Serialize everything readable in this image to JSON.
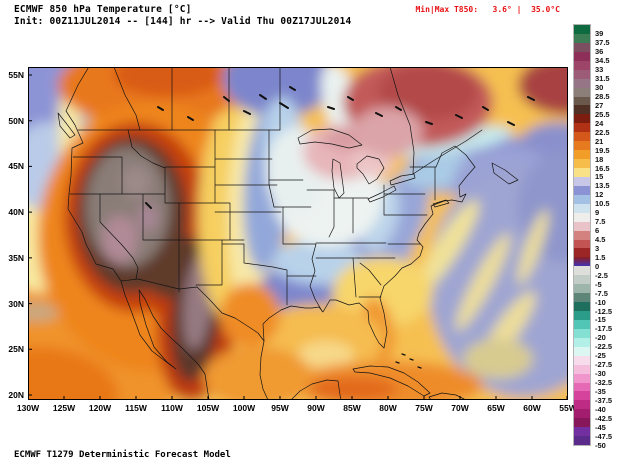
{
  "header": {
    "title": "ECMWF 850 hPa Temperature [°C]",
    "subtitle": "Init: 00Z11JUL2014 -- [144] hr --> Valid Thu 00Z17JUL2014",
    "minmax_label": "Min|Max T850:",
    "min_value": "3.6°",
    "separator": "|",
    "max_value": "35.0°C",
    "minmax_color": "#e81216"
  },
  "footer": {
    "text": "ECMWF T1279 Deterministic Forecast Model"
  },
  "axes": {
    "lat_labels": [
      "55N",
      "50N",
      "45N",
      "40N",
      "35N",
      "30N",
      "25N",
      "20N"
    ],
    "lon_labels": [
      "130W",
      "125W",
      "120W",
      "115W",
      "110W",
      "105W",
      "100W",
      "95W",
      "90W",
      "85W",
      "80W",
      "75W",
      "70W",
      "65W",
      "60W",
      "55W"
    ]
  },
  "colorbar": {
    "unit": "°C",
    "segments": [
      {
        "v": "39",
        "c": "#0e6b40"
      },
      {
        "v": "37.5",
        "c": "#3d7d55"
      },
      {
        "v": "36",
        "c": "#7b4f60"
      },
      {
        "v": "34.5",
        "c": "#8d2f58"
      },
      {
        "v": "33",
        "c": "#9c4569"
      },
      {
        "v": "31.5",
        "c": "#9c5c78"
      },
      {
        "v": "30",
        "c": "#967586"
      },
      {
        "v": "28.5",
        "c": "#8c7e79"
      },
      {
        "v": "27",
        "c": "#6b584d"
      },
      {
        "v": "25.5",
        "c": "#502f24"
      },
      {
        "v": "24",
        "c": "#7d1d10"
      },
      {
        "v": "22.5",
        "c": "#b03113"
      },
      {
        "v": "21",
        "c": "#d4581a"
      },
      {
        "v": "19.5",
        "c": "#e67a1e"
      },
      {
        "v": "18",
        "c": "#f29d28"
      },
      {
        "v": "16.5",
        "c": "#f6bd4a"
      },
      {
        "v": "15",
        "c": "#f9e187"
      },
      {
        "v": "13.5",
        "c": "#c9c7e8"
      },
      {
        "v": "12",
        "c": "#8b93d5"
      },
      {
        "v": "10.5",
        "c": "#a3c0e5"
      },
      {
        "v": "9",
        "c": "#cfe3ee"
      },
      {
        "v": "7.5",
        "c": "#efeeec"
      },
      {
        "v": "6",
        "c": "#eac3c8"
      },
      {
        "v": "4.5",
        "c": "#d4827f"
      },
      {
        "v": "3",
        "c": "#c25454"
      },
      {
        "v": "1.5",
        "c": "#9c2525"
      },
      {
        "v": "0",
        "c": "linear-gradient(#8a1c20,#4433b2)"
      },
      {
        "v": "-2.5",
        "c": "#dededb"
      },
      {
        "v": "-5",
        "c": "#c3cdc7"
      },
      {
        "v": "-7.5",
        "c": "#9db5ab"
      },
      {
        "v": "-10",
        "c": "#5d8578"
      },
      {
        "v": "-12.5",
        "c": "#1f6f5e"
      },
      {
        "v": "-15",
        "c": "#2b9c89"
      },
      {
        "v": "-17.5",
        "c": "#52c6b6"
      },
      {
        "v": "-20",
        "c": "#85e0d4"
      },
      {
        "v": "-22.5",
        "c": "#b2efe7"
      },
      {
        "v": "-25",
        "c": "#dcf7f1"
      },
      {
        "v": "-27.5",
        "c": "#f7ddeb"
      },
      {
        "v": "-30",
        "c": "#f6bedd"
      },
      {
        "v": "-32.5",
        "c": "#f195cd"
      },
      {
        "v": "-35",
        "c": "#e669b5"
      },
      {
        "v": "-37.5",
        "c": "#d6439d"
      },
      {
        "v": "-40",
        "c": "#bd2b85"
      },
      {
        "v": "-42.5",
        "c": "#a21d6d"
      },
      {
        "v": "-45",
        "c": "#87175a"
      },
      {
        "v": "-47.5",
        "c": "#722f9f"
      },
      {
        "v": "-50",
        "c": "#5b2b8b"
      }
    ]
  }
}
